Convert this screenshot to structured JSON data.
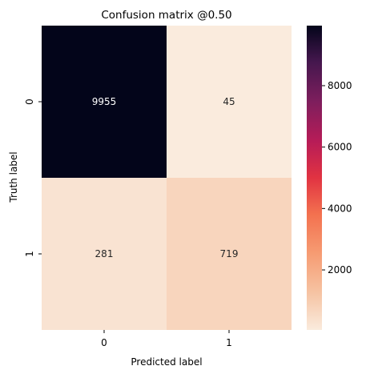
{
  "chart_data": {
    "type": "heatmap",
    "title": "Confusion matrix @0.50",
    "xlabel": "Predicted label",
    "ylabel": "Truth label",
    "x_categories": [
      "0",
      "1"
    ],
    "y_categories": [
      "0",
      "1"
    ],
    "values": [
      [
        9955,
        45
      ],
      [
        281,
        719
      ]
    ],
    "value_labels": [
      [
        "9955",
        "45"
      ],
      [
        "281",
        "719"
      ]
    ],
    "colorbar": {
      "min": 45,
      "max": 9955,
      "ticks": [
        2000,
        4000,
        6000,
        8000
      ],
      "tick_labels": [
        "2000",
        "4000",
        "6000",
        "8000"
      ],
      "colormap": "rocket_r"
    },
    "grid": false,
    "legend": "colorbar-right"
  }
}
